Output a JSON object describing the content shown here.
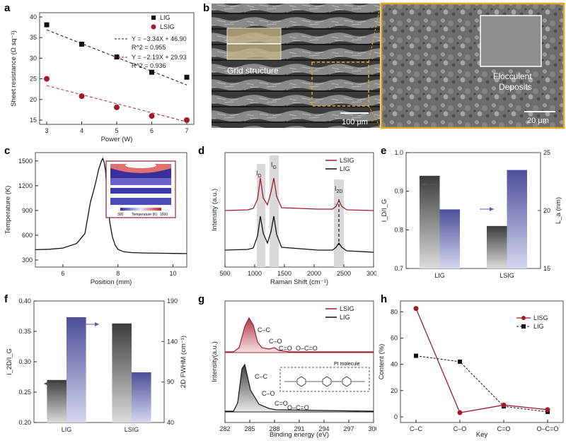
{
  "panels": {
    "a": {
      "label": "a",
      "chart_data": {
        "type": "scatter",
        "xlabel": "Power (W)",
        "ylabel": "Sheet resistance (Ω sq⁻¹)",
        "xlim": [
          3,
          7
        ],
        "ylim": [
          15,
          40
        ],
        "xticks": [
          "3",
          "4",
          "5",
          "6",
          "7"
        ],
        "yticks": [
          "15",
          "20",
          "25",
          "30",
          "35",
          "40"
        ],
        "x": [
          3,
          4,
          5,
          6,
          7
        ],
        "series": [
          {
            "name": "LIG",
            "values": [
              38.1,
              33.4,
              30.3,
              26.6,
              25.4
            ],
            "color": "#111111",
            "marker": "square",
            "fit": {
              "eq": "Y = −3.34X + 46.90",
              "r2": "R^2 = 0.955"
            }
          },
          {
            "name": "LSIG",
            "values": [
              25.0,
              20.8,
              18.1,
              16.0,
              15.0
            ],
            "color": "#a01a2c",
            "marker": "circle",
            "fit": {
              "eq": "Y = −2.19X + 29.93",
              "r2": "R^2 = 0.936"
            }
          }
        ]
      }
    },
    "b": {
      "label": "b",
      "left_caption": "Grid structure",
      "left_scale": "100 μm",
      "right_caption_line1": "Flocculent",
      "right_caption_line2": "Deposits",
      "right_scale": "20 μm"
    },
    "c": {
      "label": "c",
      "chart_data": {
        "type": "line",
        "xlabel": "Position (mm)",
        "ylabel": "Temperature (K)",
        "xlim": [
          5,
          10.5
        ],
        "ylim": [
          300,
          1550
        ],
        "xticks": [
          "6",
          "8",
          "10"
        ],
        "yticks": [
          "300",
          "600",
          "900",
          "1200",
          "1500"
        ],
        "x": [
          5.0,
          5.5,
          6.0,
          6.5,
          6.8,
          7.0,
          7.1,
          7.2,
          7.3,
          7.4,
          7.45,
          7.5,
          7.55,
          7.6,
          7.7,
          7.8,
          7.9,
          8.0,
          8.2,
          8.5,
          9.0,
          9.5,
          10.0,
          10.5
        ],
        "values": [
          425,
          430,
          445,
          500,
          620,
          1000,
          1120,
          1250,
          1400,
          1500,
          1530,
          1480,
          1380,
          1100,
          760,
          580,
          480,
          430,
          400,
          390,
          385,
          382,
          380,
          378
        ],
        "color": "#111111"
      },
      "inset": {
        "scale_min": "300",
        "scale_mid": "Temperature (K)",
        "scale_max": "1600"
      }
    },
    "d": {
      "label": "d",
      "chart_data": {
        "type": "line",
        "xlabel": "Raman Shift (cm⁻¹)",
        "ylabel": "Intensity (a.u.)",
        "xlim": [
          500,
          3000
        ],
        "xticks": [
          "500",
          "1000",
          "1500",
          "2000",
          "2500",
          "3000"
        ],
        "series": [
          {
            "name": "LSIG",
            "color": "#a01a2c"
          },
          {
            "name": "LIG",
            "color": "#111111"
          }
        ],
        "annotations": [
          "I",
          "D",
          "I",
          "G",
          "I",
          "2D"
        ]
      }
    },
    "e": {
      "label": "e",
      "chart_data": {
        "type": "bar",
        "categories": [
          "LIG",
          "LSIG"
        ],
        "ylabel_left": "I_D/I_G",
        "ylabel_right": "L_a (nm)",
        "ylim_left": [
          0.7,
          1.0
        ],
        "ylim_right": [
          15,
          25
        ],
        "yticks_left": [
          "0.7",
          "0.8",
          "0.9",
          "1.0"
        ],
        "yticks_right": [
          "15",
          "20",
          "25"
        ],
        "series": [
          {
            "axis": "left",
            "values": [
              0.94,
              0.81
            ],
            "color": "#555555"
          },
          {
            "axis": "right",
            "values": [
              20.1,
              23.5
            ],
            "color": "#7a7cb2"
          }
        ]
      }
    },
    "f": {
      "label": "f",
      "chart_data": {
        "type": "bar",
        "categories": [
          "LIG",
          "LSIG"
        ],
        "ylabel_left": "I_2D/I_G",
        "ylabel_right": "2D FWHM (cm⁻¹)",
        "ylim_left": [
          0.2,
          0.4
        ],
        "ylim_right": [
          40,
          190
        ],
        "yticks_left": [
          "0.20",
          "0.25",
          "0.30",
          "0.35",
          "0.40"
        ],
        "yticks_right": [
          "40",
          "90",
          "140",
          "190"
        ],
        "series": [
          {
            "axis": "left",
            "values": [
              0.27,
              0.363
            ],
            "color": "#555555"
          },
          {
            "axis": "right",
            "values": [
              170,
              102
            ],
            "color": "#7a7cb2"
          }
        ]
      }
    },
    "g": {
      "label": "g",
      "chart_data": {
        "type": "line",
        "xlabel": "Binding energy (eV)",
        "ylabel": "Intensity(a.u.)",
        "xlim": [
          282,
          300
        ],
        "xticks": [
          "282",
          "285",
          "288",
          "291",
          "294",
          "297",
          "300"
        ],
        "series": [
          {
            "name": "LSIG",
            "color": "#a01a2c"
          },
          {
            "name": "LIG",
            "color": "#111111"
          }
        ],
        "peak_labels_top": [
          "C–C",
          "C–O",
          "C=O",
          "O–C=O"
        ],
        "peak_labels_bottom": [
          "C–C",
          "C–O",
          "C=O",
          "O–C=O"
        ],
        "inset_label": "PI molecule"
      }
    },
    "h": {
      "label": "h",
      "chart_data": {
        "type": "line",
        "xlabel": "Key",
        "ylabel": "Content (%)",
        "ylim": [
          0,
          85
        ],
        "yticks": [
          "0",
          "20",
          "40",
          "60",
          "80"
        ],
        "categories": [
          "C–C",
          "C–O",
          "C=O",
          "O–C=O"
        ],
        "series": [
          {
            "name": "LISG",
            "values": [
              82.5,
              3.2,
              9.0,
              5.5
            ],
            "color": "#a01a2c",
            "marker": "circle"
          },
          {
            "name": "LIG",
            "values": [
              46.5,
              42.0,
              8.0,
              3.8
            ],
            "color": "#111111",
            "marker": "square",
            "dashed": true
          }
        ]
      }
    }
  }
}
